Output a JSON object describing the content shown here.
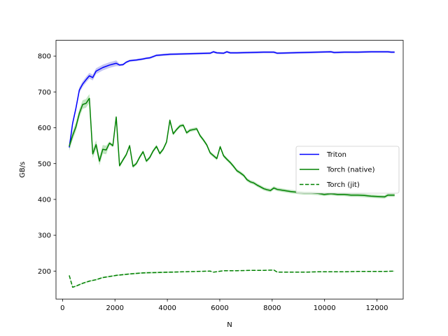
{
  "chart_data": {
    "type": "line",
    "title": "",
    "xlabel": "N",
    "ylabel": "GB/s",
    "xlim": [
      -250,
      13000
    ],
    "ylim": [
      122,
      844
    ],
    "xticks": [
      0,
      2000,
      4000,
      6000,
      8000,
      10000,
      12000
    ],
    "yticks": [
      200,
      300,
      400,
      500,
      600,
      700,
      800
    ],
    "grid": false,
    "legend_position": "center-right",
    "series": [
      {
        "name": "Triton",
        "color": "#0000ff",
        "linestyle": "solid",
        "band_color": "#b8b8f0",
        "x": [
          256,
          384,
          512,
          640,
          768,
          896,
          1024,
          1152,
          1280,
          1536,
          1792,
          2048,
          2176,
          2304,
          2432,
          2560,
          2816,
          3072,
          3200,
          3328,
          3584,
          4096,
          4608,
          5120,
          5632,
          5760,
          5888,
          6144,
          6272,
          6400,
          6656,
          7168,
          7680,
          8064,
          8192,
          8704,
          9216,
          9728,
          10240,
          10368,
          10752,
          11264,
          11776,
          12288,
          12416,
          12544,
          12672
        ],
        "y": [
          545,
          612,
          655,
          705,
          722,
          734,
          745,
          740,
          758,
          768,
          775,
          780,
          775,
          776,
          783,
          787,
          789,
          792,
          794,
          795,
          802,
          805,
          806,
          807,
          808,
          812,
          809,
          808,
          812,
          809,
          809,
          810,
          811,
          811,
          808,
          809,
          810,
          811,
          812,
          810,
          811,
          811,
          812,
          812,
          812,
          811,
          811
        ]
      },
      {
        "name": "Torch (native)",
        "color": "#008000",
        "linestyle": "solid",
        "band_color": "#b0deb0",
        "x": [
          256,
          384,
          512,
          640,
          768,
          896,
          1024,
          1152,
          1280,
          1408,
          1536,
          1664,
          1792,
          1920,
          2048,
          2176,
          2304,
          2432,
          2560,
          2688,
          2816,
          2944,
          3072,
          3200,
          3328,
          3456,
          3584,
          3712,
          3840,
          3968,
          4096,
          4224,
          4352,
          4480,
          4608,
          4736,
          4864,
          4992,
          5120,
          5248,
          5376,
          5504,
          5632,
          5760,
          5888,
          6016,
          6144,
          6272,
          6400,
          6528,
          6656,
          6784,
          6912,
          7040,
          7168,
          7296,
          7424,
          7552,
          7680,
          7808,
          7936,
          8064,
          8192,
          8448,
          8704,
          8960,
          9216,
          9472,
          9728,
          9984,
          10240,
          10496,
          10752,
          11008,
          11264,
          11520,
          11776,
          12032,
          12288,
          12416,
          12672
        ],
        "y": [
          548,
          578,
          603,
          640,
          665,
          668,
          682,
          527,
          553,
          507,
          540,
          538,
          557,
          550,
          630,
          494,
          510,
          525,
          550,
          492,
          500,
          518,
          533,
          507,
          517,
          535,
          548,
          528,
          540,
          560,
          621,
          583,
          595,
          605,
          607,
          586,
          593,
          595,
          597,
          578,
          566,
          552,
          530,
          522,
          514,
          547,
          522,
          512,
          503,
          492,
          480,
          474,
          467,
          455,
          449,
          446,
          440,
          435,
          430,
          427,
          425,
          432,
          428,
          425,
          422,
          420,
          418,
          418,
          417,
          414,
          416,
          414,
          414,
          412,
          412,
          411,
          409,
          408,
          407,
          412,
          412
        ]
      },
      {
        "name": "Torch (jit)",
        "color": "#008000",
        "linestyle": "dashed",
        "band_color": "#b0deb0",
        "x": [
          256,
          384,
          512,
          768,
          1024,
          1280,
          1536,
          2048,
          2560,
          3072,
          3584,
          4096,
          4608,
          5120,
          5632,
          5760,
          6144,
          6656,
          7168,
          7680,
          8064,
          8192,
          8704,
          9216,
          9728,
          10240,
          10752,
          11264,
          11776,
          12288,
          12672
        ],
        "y": [
          188,
          155,
          158,
          166,
          172,
          176,
          182,
          188,
          192,
          195,
          196,
          197,
          198,
          199,
          200,
          197,
          201,
          201,
          202,
          202,
          203,
          197,
          197,
          197,
          198,
          198,
          198,
          199,
          199,
          199,
          200
        ]
      }
    ]
  }
}
